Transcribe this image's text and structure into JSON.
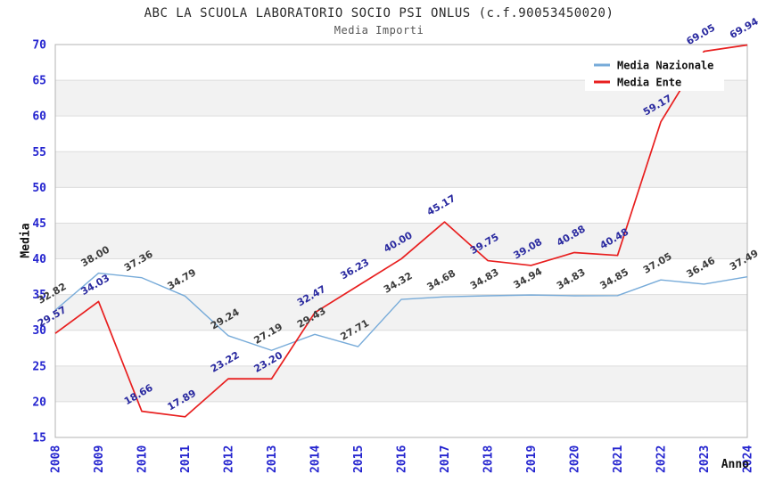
{
  "chart_data": {
    "type": "line",
    "title": "ABC LA SCUOLA LABORATORIO SOCIO PSI ONLUS (c.f.90053450020)",
    "subtitle": "Media Importi",
    "xlabel": "Anno",
    "ylabel": "Media",
    "ylim": [
      15,
      70
    ],
    "ytick_step": 5,
    "grid": true,
    "banded_background": true,
    "legend_position": "top-right",
    "categories": [
      "2008",
      "2009",
      "2010",
      "2011",
      "2012",
      "2013",
      "2014",
      "2015",
      "2016",
      "2017",
      "2018",
      "2019",
      "2020",
      "2021",
      "2022",
      "2023",
      "2024"
    ],
    "series": [
      {
        "name": "Media Nazionale",
        "color": "#77abd9",
        "label_color": "#3c3c3c",
        "values": [
          32.82,
          38.0,
          37.36,
          34.79,
          29.24,
          27.19,
          29.43,
          27.71,
          34.32,
          34.68,
          34.83,
          34.94,
          34.83,
          34.85,
          37.05,
          36.46,
          37.49
        ]
      },
      {
        "name": "Media Ente",
        "color": "#e81f1f",
        "label_color": "#2a2aa0",
        "values": [
          29.57,
          34.03,
          18.66,
          17.89,
          23.22,
          23.2,
          32.47,
          36.23,
          40.0,
          45.17,
          39.75,
          39.08,
          40.88,
          40.48,
          59.17,
          69.05,
          69.94
        ]
      }
    ],
    "colors": {
      "tick_labels": "#2424cf",
      "band_fill": "#f2f2f2",
      "gridline": "#dcdcdc",
      "plot_border": "#b3b3b3",
      "legend_background": "#ffffff",
      "legend_text": "#111111"
    }
  }
}
